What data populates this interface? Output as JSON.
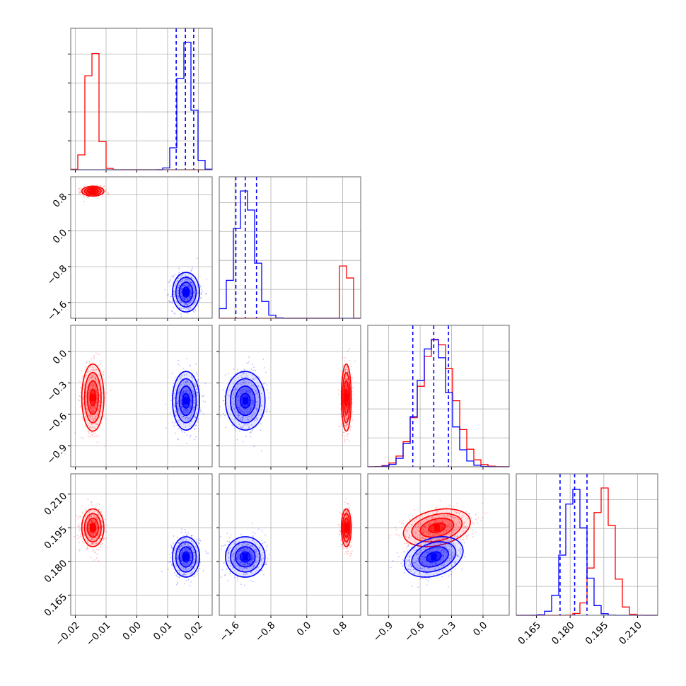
{
  "colors": {
    "series_a": "#ff0000",
    "series_b": "#0000ff"
  },
  "chart_data": {
    "type": "corner",
    "grid": true,
    "variables": [
      {
        "range": [
          -0.0215,
          0.0245
        ],
        "ticks": [
          -0.02,
          -0.01,
          0.0,
          0.01,
          0.02
        ],
        "tick_labels": [
          "−0.02",
          "−0.01",
          "0.00",
          "0.01",
          "0.02"
        ]
      },
      {
        "range": [
          -1.95,
          1.2
        ],
        "ticks": [
          -1.6,
          -0.8,
          0.0,
          0.8
        ],
        "tick_labels": [
          "−1.6",
          "−0.8",
          "0.0",
          "0.8"
        ]
      },
      {
        "range": [
          -1.1,
          0.25
        ],
        "ticks": [
          -0.9,
          -0.6,
          -0.3,
          0.0
        ],
        "tick_labels": [
          "−0.9",
          "−0.6",
          "−0.3",
          "0.0"
        ]
      },
      {
        "range": [
          0.156,
          0.219
        ],
        "ticks": [
          0.165,
          0.18,
          0.195,
          0.21
        ],
        "tick_labels": [
          "0.165",
          "0.180",
          "0.195",
          "0.210"
        ]
      }
    ],
    "series": [
      {
        "color": "#ff0000",
        "mean": [
          -0.0143,
          0.88,
          -0.44,
          0.195
        ],
        "sd": [
          0.0018,
          0.055,
          0.16,
          0.0042
        ],
        "quantile_lines": false
      },
      {
        "color": "#0000ff",
        "mean": [
          0.016,
          -1.37,
          -0.47,
          0.182
        ],
        "sd": [
          0.0022,
          0.22,
          0.14,
          0.0045
        ],
        "quantile_lines": true,
        "quantiles": [
          [
            0.0128,
            0.0158,
            0.0185
          ],
          [
            -1.58,
            -1.37,
            -1.12
          ],
          [
            -0.67,
            -0.47,
            -0.33
          ],
          [
            0.1755,
            0.182,
            0.1875
          ]
        ]
      }
    ],
    "correlation": {
      "pair_2_3": 0.3
    }
  }
}
